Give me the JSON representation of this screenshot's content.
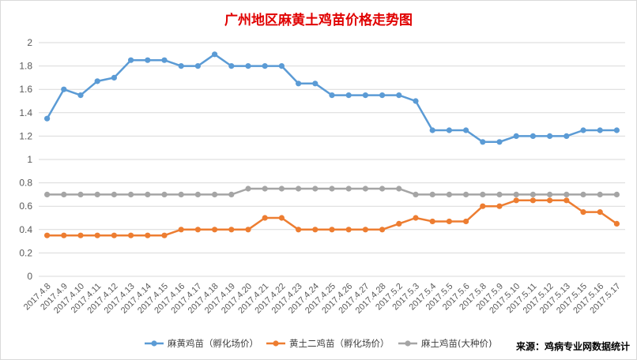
{
  "chart_data": {
    "type": "line",
    "title": "广州地区麻黄土鸡苗价格走势图",
    "xlabel": "",
    "ylabel": "",
    "ylim": [
      0,
      2
    ],
    "yticks": [
      "0",
      "0.2",
      "0.4",
      "0.6",
      "0.8",
      "1",
      "1.2",
      "1.4",
      "1.6",
      "1.8",
      "2"
    ],
    "grid": true,
    "legend": "bottom",
    "categories": [
      "2017.4.8",
      "2017.4.9",
      "2017.4.10",
      "2017.4.11",
      "2017.4.12",
      "2017.4.13",
      "2017.4.14",
      "2017.4.15",
      "2017.4.16",
      "2017.4.17",
      "2017.4.18",
      "2017.4.19",
      "2017.4.20",
      "2017.4.21",
      "2017.4.22",
      "2017.4.23",
      "2017.4.24",
      "2017.4.25",
      "2017.4.26",
      "2017.4.27",
      "2017.4.28",
      "2017.5.2",
      "2017.5.3",
      "2017.5.4",
      "2017.5.5",
      "2017.5.6",
      "2017.5.8",
      "2017.5.9",
      "2017.5.10",
      "2017.5.11",
      "2017.5.12",
      "2017.5.13",
      "2017.5.15",
      "2017.5.16",
      "2017.5.17"
    ],
    "series": [
      {
        "name": "麻黄鸡苗（孵化场价）",
        "color": "#5b9bd5",
        "values": [
          1.35,
          1.6,
          1.55,
          1.67,
          1.7,
          1.85,
          1.85,
          1.85,
          1.8,
          1.8,
          1.9,
          1.8,
          1.8,
          1.8,
          1.8,
          1.65,
          1.65,
          1.55,
          1.55,
          1.55,
          1.55,
          1.55,
          1.5,
          1.25,
          1.25,
          1.25,
          1.15,
          1.15,
          1.2,
          1.2,
          1.2,
          1.2,
          1.25,
          1.25,
          1.25
        ]
      },
      {
        "name": "黄土二鸡苗（孵化场价）",
        "color": "#ed7d31",
        "values": [
          0.35,
          0.35,
          0.35,
          0.35,
          0.35,
          0.35,
          0.35,
          0.35,
          0.4,
          0.4,
          0.4,
          0.4,
          0.4,
          0.5,
          0.5,
          0.4,
          0.4,
          0.4,
          0.4,
          0.4,
          0.4,
          0.45,
          0.5,
          0.47,
          0.47,
          0.47,
          0.6,
          0.6,
          0.65,
          0.65,
          0.65,
          0.65,
          0.55,
          0.55,
          0.45
        ]
      },
      {
        "name": "麻土鸡苗(大种价)",
        "color": "#a5a5a5",
        "values": [
          0.7,
          0.7,
          0.7,
          0.7,
          0.7,
          0.7,
          0.7,
          0.7,
          0.7,
          0.7,
          0.7,
          0.7,
          0.75,
          0.75,
          0.75,
          0.75,
          0.75,
          0.75,
          0.75,
          0.75,
          0.75,
          0.75,
          0.7,
          0.7,
          0.7,
          0.7,
          0.7,
          0.7,
          0.7,
          0.7,
          0.7,
          0.7,
          0.7,
          0.7,
          0.7
        ]
      }
    ]
  },
  "source_text": "来源：鸡病专业网数据统计"
}
